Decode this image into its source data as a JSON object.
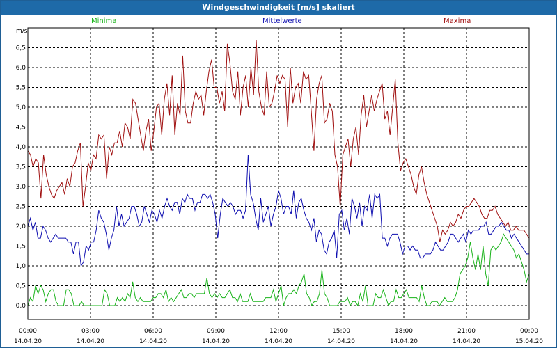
{
  "window": {
    "title": "Windgeschwindigkeit [m/s] skaliert"
  },
  "colors": {
    "minima": "#19b31a",
    "mittelwerte": "#0f0fb0",
    "maxima": "#a01010",
    "grid": "#000000"
  },
  "chart_data": {
    "type": "line",
    "title": "Windgeschwindigkeit [m/s] skaliert",
    "ylabel": "m/s",
    "xlabel": "",
    "ylim": [
      -0.35,
      7.0
    ],
    "xlim": [
      0,
      24
    ],
    "y_ticks": [
      "0,0",
      "0,5",
      "1,0",
      "1,5",
      "2,0",
      "2,5",
      "3,0",
      "3,5",
      "4,0",
      "4,5",
      "5,0",
      "5,5",
      "6,0",
      "6,5"
    ],
    "x_ticks": [
      {
        "time": "00:00",
        "date": "14.04.20"
      },
      {
        "time": "03:00",
        "date": "14.04.20"
      },
      {
        "time": "06:00",
        "date": "14.04.20"
      },
      {
        "time": "09:00",
        "date": "14.04.20"
      },
      {
        "time": "12:00",
        "date": "14.04.20"
      },
      {
        "time": "15:00",
        "date": "14.04.20"
      },
      {
        "time": "18:00",
        "date": "14.04.20"
      },
      {
        "time": "21:00",
        "date": "14.04.20"
      },
      {
        "time": "00:00",
        "date": "15.04.20"
      }
    ],
    "series": [
      {
        "name": "Minima",
        "values": [
          0.0,
          0.2,
          0.1,
          0.5,
          0.3,
          0.5,
          0.4,
          0.1,
          0.3,
          0.4,
          0.4,
          0.1,
          0.0,
          0.0,
          0.0,
          0.4,
          0.4,
          0.3,
          0.0,
          0.0,
          0.0,
          0.1,
          0.0,
          0.0,
          0.0,
          0.0,
          0.0,
          0.0,
          0.0,
          0.0,
          0.4,
          0.3,
          0.0,
          0.0,
          0.0,
          0.2,
          0.1,
          0.2,
          0.1,
          0.3,
          0.2,
          0.6,
          0.2,
          0.1,
          0.2,
          0.1,
          0.1,
          0.1,
          0.1,
          0.2,
          0.2,
          0.3,
          0.3,
          0.2,
          0.4,
          0.1,
          0.2,
          0.1,
          0.2,
          0.3,
          0.4,
          0.2,
          0.2,
          0.3,
          0.3,
          0.2,
          0.3,
          0.3,
          0.3,
          0.3,
          0.7,
          0.3,
          0.2,
          0.3,
          0.2,
          0.3,
          0.2,
          0.2,
          0.3,
          0.4,
          0.2,
          0.2,
          0.1,
          0.3,
          0.1,
          0.1,
          0.1,
          0.3,
          0.1,
          0.1,
          0.1,
          0.1,
          0.1,
          0.2,
          0.2,
          0.2,
          0.4,
          0.1,
          0.3,
          0.5,
          0.0,
          0.2,
          0.3,
          0.3,
          0.4,
          0.3,
          0.5,
          0.6,
          0.8,
          0.3,
          0.2,
          0.0,
          0.1,
          0.1,
          0.3,
          0.9,
          0.3,
          0.2,
          0.0,
          0.0,
          0.0,
          0.0,
          0.1,
          0.1,
          0.1,
          0.2,
          0.0,
          0.1,
          0.1,
          0.0,
          0.3,
          0.1,
          0.5,
          0.0,
          0.0,
          0.0,
          0.3,
          0.2,
          0.2,
          0.4,
          0.2,
          0.0,
          0.1,
          0.1,
          0.4,
          0.2,
          0.2,
          0.3,
          0.4,
          0.2,
          0.2,
          0.2,
          0.2,
          0.1,
          0.5,
          0.2,
          0.0,
          0.0,
          0.1,
          0.1,
          0.1,
          0.0,
          0.1,
          0.2,
          0.1,
          0.1,
          0.1,
          0.2,
          0.4,
          0.8,
          0.9,
          1.0,
          1.2,
          1.6,
          1.2,
          0.9,
          1.3,
          0.9,
          1.5,
          0.8,
          0.5,
          1.4,
          1.5,
          1.4,
          1.5,
          1.6,
          1.8,
          1.7,
          1.6,
          1.5,
          1.4,
          1.2,
          1.3,
          1.1,
          0.9,
          0.6,
          0.8
        ]
      },
      {
        "name": "Mittelwerte",
        "values": [
          2.0,
          2.2,
          1.9,
          2.1,
          1.7,
          1.7,
          2.0,
          1.9,
          1.7,
          1.6,
          1.7,
          1.8,
          1.7,
          1.7,
          1.7,
          1.7,
          1.6,
          1.6,
          1.3,
          1.6,
          1.6,
          1.0,
          1.1,
          1.5,
          1.4,
          1.6,
          1.6,
          1.9,
          2.4,
          2.2,
          2.1,
          1.8,
          1.4,
          1.7,
          1.9,
          2.5,
          2.0,
          2.3,
          2.0,
          2.1,
          2.2,
          2.5,
          2.5,
          2.3,
          2.0,
          2.1,
          2.5,
          2.3,
          2.1,
          2.4,
          2.3,
          2.1,
          2.4,
          2.2,
          2.5,
          2.7,
          2.5,
          2.4,
          2.6,
          2.6,
          2.3,
          2.7,
          2.6,
          2.8,
          2.7,
          2.7,
          2.4,
          2.6,
          2.6,
          2.8,
          2.8,
          2.7,
          2.8,
          2.6,
          2.3,
          1.7,
          2.3,
          2.7,
          2.6,
          2.5,
          2.6,
          2.5,
          2.3,
          2.4,
          2.4,
          2.2,
          2.4,
          3.8,
          2.8,
          2.6,
          2.2,
          1.9,
          2.7,
          2.1,
          2.3,
          2.5,
          2.0,
          2.3,
          2.5,
          2.9,
          2.7,
          2.3,
          2.5,
          2.5,
          2.3,
          2.9,
          2.2,
          2.6,
          2.7,
          2.4,
          2.2,
          2.1,
          1.9,
          2.2,
          1.6,
          1.9,
          1.8,
          1.4,
          1.3,
          1.6,
          1.7,
          1.9,
          1.2,
          2.3,
          2.4,
          1.9,
          2.2,
          1.8,
          2.7,
          2.5,
          2.2,
          2.6,
          2.0,
          2.5,
          2.4,
          2.8,
          2.2,
          2.8,
          2.7,
          2.8,
          1.7,
          1.7,
          1.5,
          1.7,
          1.8,
          1.8,
          1.8,
          1.6,
          1.3,
          1.5,
          1.5,
          1.4,
          1.5,
          1.4,
          1.4,
          1.2,
          1.2,
          1.3,
          1.3,
          1.3,
          1.4,
          1.6,
          1.5,
          1.4,
          1.4,
          1.5,
          1.6,
          1.8,
          1.8,
          1.7,
          1.6,
          1.7,
          1.8,
          1.6,
          1.9,
          1.8,
          1.9,
          1.9,
          1.9,
          2.0,
          2.0,
          2.1,
          1.8,
          1.8,
          1.9,
          2.0,
          2.0,
          2.1,
          2.0,
          1.9,
          1.9,
          1.7,
          1.8,
          1.7,
          1.6,
          1.5,
          1.4,
          1.3,
          1.3
        ]
      },
      {
        "name": "Maxima",
        "values": [
          3.9,
          3.8,
          3.5,
          3.7,
          3.6,
          2.7,
          3.8,
          3.3,
          3.0,
          2.8,
          2.7,
          2.9,
          3.0,
          3.1,
          2.8,
          3.2,
          3.0,
          3.5,
          3.6,
          3.9,
          4.1,
          2.5,
          3.0,
          3.6,
          3.4,
          3.8,
          3.7,
          4.3,
          4.2,
          4.3,
          3.2,
          4.0,
          3.8,
          4.1,
          4.1,
          4.4,
          4.0,
          4.6,
          4.5,
          4.2,
          5.2,
          5.1,
          4.7,
          4.3,
          3.9,
          4.4,
          4.7,
          3.9,
          4.4,
          5.0,
          5.1,
          4.3,
          5.2,
          5.6,
          4.8,
          5.8,
          4.3,
          5.1,
          4.8,
          6.3,
          4.9,
          4.6,
          4.6,
          5.1,
          5.4,
          5.2,
          5.3,
          4.8,
          5.4,
          5.9,
          6.2,
          5.5,
          5.5,
          5.1,
          5.4,
          4.9,
          6.6,
          6.1,
          5.4,
          5.2,
          5.9,
          4.8,
          5.5,
          5.8,
          5.0,
          6.0,
          5.3,
          6.7,
          5.4,
          5.0,
          4.8,
          5.9,
          5.0,
          5.1,
          5.4,
          5.8,
          5.6,
          5.8,
          5.7,
          4.5,
          6.0,
          5.1,
          5.5,
          5.6,
          5.1,
          5.9,
          5.7,
          5.8,
          4.9,
          3.9,
          5.2,
          5.6,
          5.8,
          4.6,
          4.7,
          5.1,
          4.9,
          3.8,
          3.5,
          2.5,
          3.8,
          4.0,
          4.2,
          3.5,
          4.2,
          4.5,
          3.8,
          4.8,
          5.3,
          4.5,
          4.9,
          5.3,
          4.9,
          5.2,
          5.4,
          5.6,
          4.7,
          4.9,
          4.3,
          5.0,
          5.7,
          4.1,
          3.4,
          3.6,
          3.7,
          3.5,
          3.3,
          3.0,
          2.8,
          3.3,
          3.5,
          3.1,
          2.8,
          2.6,
          2.4,
          2.2,
          2.0,
          1.6,
          1.9,
          1.8,
          1.9,
          2.1,
          2.0,
          2.1,
          2.3,
          2.2,
          2.4,
          2.5,
          2.5,
          2.6,
          2.7,
          2.6,
          2.5,
          2.3,
          2.2,
          2.2,
          2.4,
          2.4,
          2.5,
          2.3,
          2.2,
          2.1,
          2.0,
          2.1,
          1.9,
          1.9,
          2.0,
          1.9,
          1.9,
          1.9,
          1.8,
          1.7
        ]
      }
    ]
  }
}
